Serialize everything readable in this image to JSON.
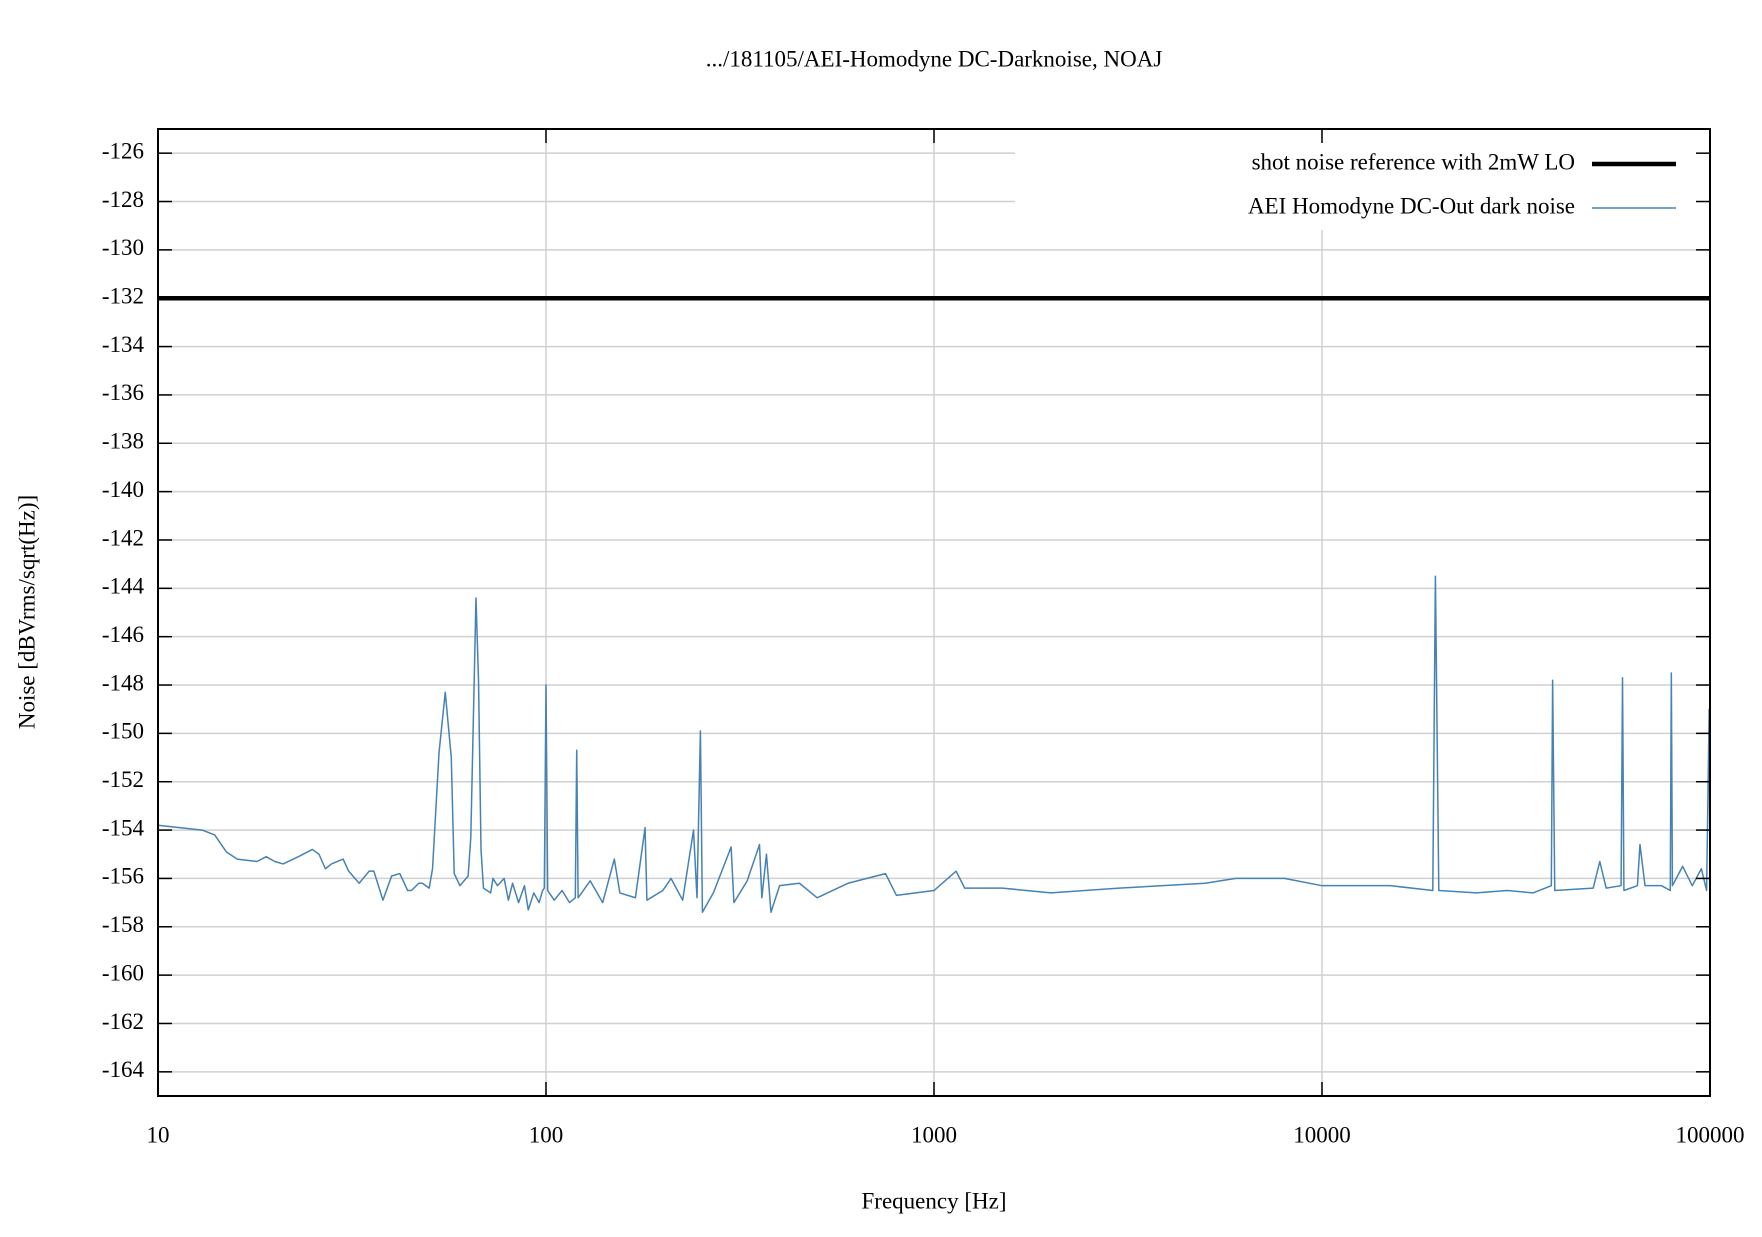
{
  "chart_data": {
    "type": "line",
    "title": ".../181105/AEI-Homodyne DC-Darknoise, NOAJ",
    "x_label": "Frequency [Hz]",
    "y_label": "Noise [dBVrms/sqrt(Hz)]",
    "xscale": "log",
    "grid": true,
    "legend": "top-right",
    "xlim": [
      10,
      100000
    ],
    "xticks": [
      10,
      100,
      1000,
      10000,
      100000
    ],
    "ylim": [
      -165,
      -125
    ],
    "yticks": [
      -164,
      -162,
      -160,
      -158,
      -156,
      -154,
      -152,
      -150,
      -148,
      -146,
      -144,
      -142,
      -140,
      -138,
      -136,
      -134,
      -132,
      -130,
      -128,
      -126
    ],
    "series": [
      {
        "name": "shot noise reference with 2mW LO",
        "color": "#000000",
        "width": 4.5,
        "x": [
          10,
          100000
        ],
        "values": [
          -132,
          -132
        ]
      },
      {
        "name": "AEI Homodyne DC-Out dark noise",
        "color": "#4682b4",
        "width": 1.5,
        "x": [
          10,
          13,
          14,
          15,
          16,
          18,
          19,
          20,
          21,
          23,
          25,
          26,
          27,
          28,
          30,
          31,
          33,
          35,
          36,
          38,
          40,
          42,
          44,
          45,
          47,
          48,
          50,
          51,
          53,
          55,
          57,
          58,
          60,
          63,
          64,
          66,
          67,
          68,
          69,
          72,
          73,
          75,
          78,
          80,
          82,
          85,
          88,
          90,
          93,
          96,
          98,
          99,
          100,
          101,
          105,
          110,
          115,
          119,
          120,
          121,
          130,
          140,
          150,
          155,
          170,
          180,
          182,
          200,
          210,
          225,
          240,
          245,
          250,
          253,
          270,
          300,
          305,
          330,
          355,
          360,
          370,
          380,
          400,
          450,
          500,
          600,
          750,
          800,
          1000,
          1140,
          1200,
          1500,
          2000,
          3000,
          5000,
          6000,
          8000,
          10000,
          15000,
          19300,
          19600,
          20000,
          25000,
          30000,
          35000,
          39000,
          39300,
          39800,
          50000,
          52000,
          54000,
          59000,
          59500,
          60000,
          65000,
          66000,
          68000,
          75000,
          79000,
          79500,
          80000,
          85000,
          90000,
          95000,
          98000,
          99500,
          100000
        ],
        "values": [
          -153.8,
          -154.0,
          -154.2,
          -154.9,
          -155.2,
          -155.3,
          -155.1,
          -155.3,
          -155.4,
          -155.1,
          -154.8,
          -155.0,
          -155.6,
          -155.4,
          -155.2,
          -155.7,
          -156.2,
          -155.7,
          -155.7,
          -156.9,
          -155.9,
          -155.8,
          -156.5,
          -156.5,
          -156.2,
          -156.2,
          -156.4,
          -155.6,
          -150.8,
          -148.3,
          -151.0,
          -155.8,
          -156.3,
          -155.9,
          -154.3,
          -144.4,
          -147.8,
          -154.8,
          -156.4,
          -156.6,
          -156.0,
          -156.3,
          -156.0,
          -156.9,
          -156.2,
          -157.0,
          -156.3,
          -157.3,
          -156.6,
          -157.0,
          -156.5,
          -156.4,
          -148.0,
          -156.5,
          -156.9,
          -156.5,
          -157.0,
          -156.8,
          -150.7,
          -156.8,
          -156.1,
          -157.0,
          -155.2,
          -156.6,
          -156.8,
          -153.9,
          -156.9,
          -156.5,
          -156.0,
          -156.9,
          -154.0,
          -156.8,
          -149.9,
          -157.4,
          -156.6,
          -154.7,
          -157.0,
          -156.1,
          -154.6,
          -156.8,
          -155.0,
          -157.4,
          -156.3,
          -156.2,
          -156.8,
          -156.2,
          -155.8,
          -156.7,
          -156.5,
          -155.7,
          -156.4,
          -156.4,
          -156.6,
          -156.4,
          -156.2,
          -156.0,
          -156.0,
          -156.3,
          -156.3,
          -156.5,
          -143.5,
          -156.5,
          -156.6,
          -156.5,
          -156.6,
          -156.3,
          -147.8,
          -156.5,
          -156.4,
          -155.3,
          -156.4,
          -156.3,
          -147.7,
          -156.5,
          -156.3,
          -154.6,
          -156.3,
          -156.3,
          -156.5,
          -147.5,
          -156.3,
          -155.5,
          -156.3,
          -155.6,
          -156.5,
          -149.0,
          -156.2
        ]
      }
    ]
  }
}
